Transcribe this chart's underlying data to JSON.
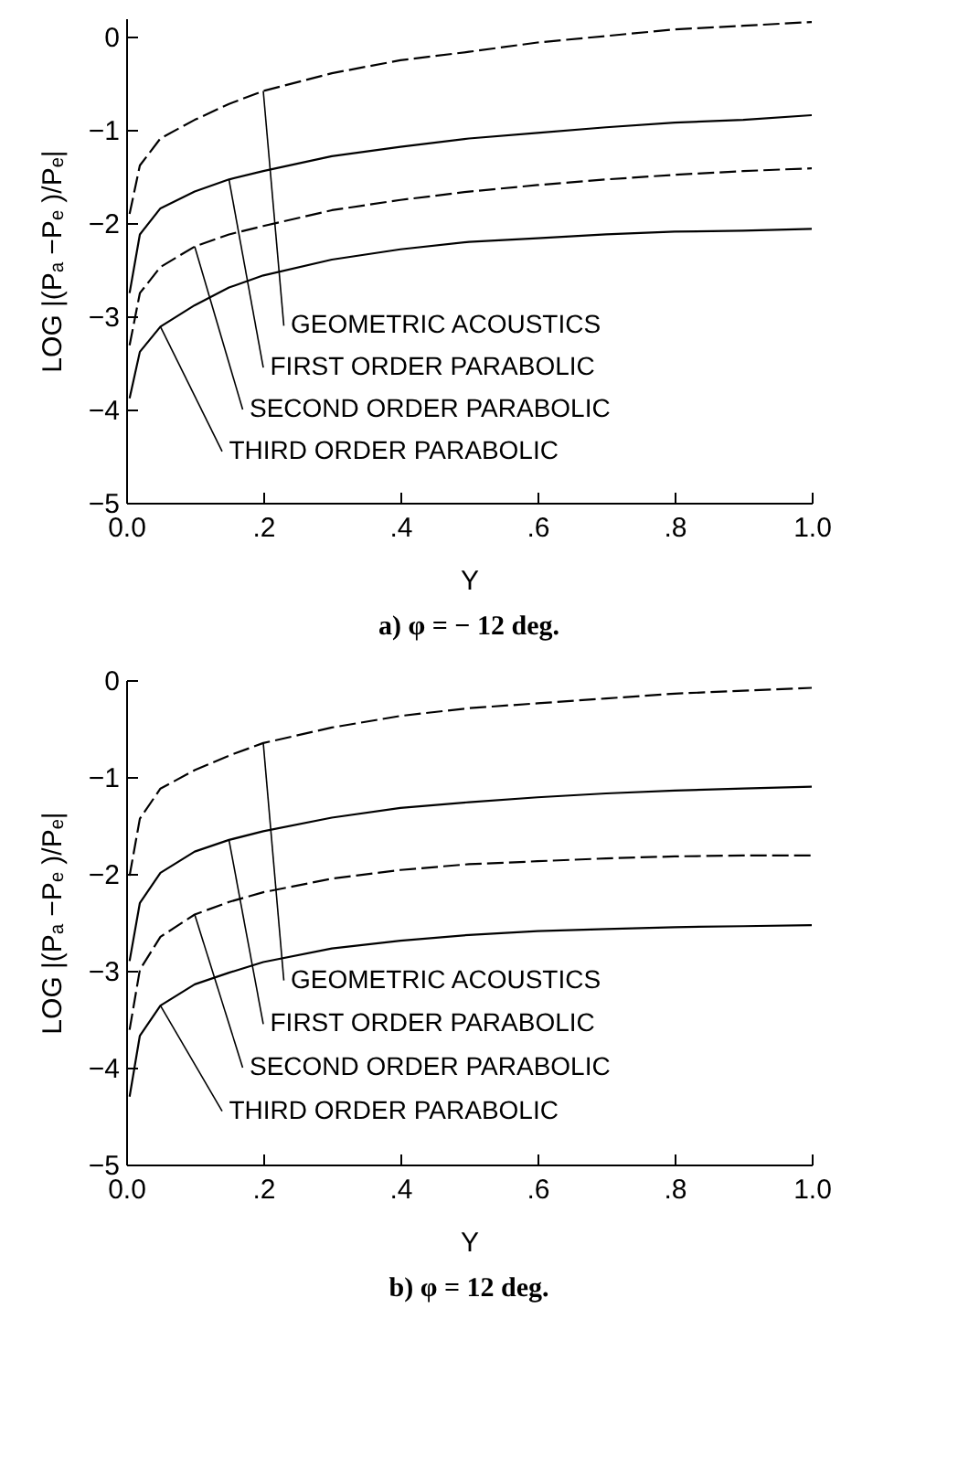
{
  "chart_data": [
    {
      "type": "line",
      "title": "a)  φ = − 12  deg.",
      "xlabel": "Y",
      "ylabel": "LOG  |(Pₐ −Pₑ )/Pₑ|",
      "xlim": [
        0,
        1
      ],
      "ylim": [
        -5,
        0.2
      ],
      "xticks": [
        {
          "value": 0,
          "label": "0.0"
        },
        {
          "value": 0.2,
          "label": ".2"
        },
        {
          "value": 0.4,
          "label": ".4"
        },
        {
          "value": 0.6,
          "label": ".6"
        },
        {
          "value": 0.8,
          "label": ".8"
        },
        {
          "value": 1,
          "label": "1.0"
        }
      ],
      "yticks": [
        -5,
        -4,
        -3,
        -2,
        -1,
        0
      ],
      "grid": false,
      "legend": false,
      "marker": "none",
      "x": [
        0.005,
        0.02,
        0.05,
        0.1,
        0.15,
        0.2,
        0.3,
        0.4,
        0.5,
        0.6,
        0.7,
        0.8,
        0.9,
        1.0
      ],
      "series": [
        {
          "name": "GEOMETRIC ACOUSTICS",
          "color": "#000000",
          "line_style": "dashed",
          "values": [
            -1.9,
            -1.38,
            -1.09,
            -0.89,
            -0.72,
            -0.58,
            -0.39,
            -0.25,
            -0.16,
            -0.06,
            0.01,
            0.08,
            0.12,
            0.16
          ]
        },
        {
          "name": "FIRST ORDER PARABOLIC",
          "color": "#000000",
          "line_style": "solid",
          "values": [
            -2.75,
            -2.12,
            -1.84,
            -1.66,
            -1.53,
            -1.44,
            -1.28,
            -1.18,
            -1.09,
            -1.03,
            -0.97,
            -0.92,
            -0.89,
            -0.84
          ]
        },
        {
          "name": "SECOND ORDER PARABOLIC",
          "color": "#000000",
          "line_style": "dashed",
          "values": [
            -3.31,
            -2.75,
            -2.47,
            -2.25,
            -2.12,
            -2.03,
            -1.86,
            -1.75,
            -1.66,
            -1.59,
            -1.53,
            -1.48,
            -1.44,
            -1.41
          ]
        },
        {
          "name": "THIRD ORDER PARABOLIC",
          "color": "#000000",
          "line_style": "solid",
          "values": [
            -3.88,
            -3.38,
            -3.11,
            -2.88,
            -2.69,
            -2.56,
            -2.39,
            -2.28,
            -2.2,
            -2.16,
            -2.12,
            -2.09,
            -2.08,
            -2.06
          ]
        }
      ]
    },
    {
      "type": "line",
      "title": "b)  φ = 12  deg.",
      "xlabel": "Y",
      "ylabel": "LOG  |(Pₐ −Pₑ )/Pₑ|",
      "xlim": [
        0,
        1
      ],
      "ylim": [
        -5,
        0
      ],
      "xticks": [
        {
          "value": 0,
          "label": "0.0"
        },
        {
          "value": 0.2,
          "label": ".2"
        },
        {
          "value": 0.4,
          "label": ".4"
        },
        {
          "value": 0.6,
          "label": ".6"
        },
        {
          "value": 0.8,
          "label": ".8"
        },
        {
          "value": 1,
          "label": "1.0"
        }
      ],
      "yticks": [
        -5,
        -4,
        -3,
        -2,
        -1,
        0
      ],
      "grid": false,
      "legend": false,
      "marker": "none",
      "x": [
        0.005,
        0.02,
        0.05,
        0.1,
        0.15,
        0.2,
        0.3,
        0.4,
        0.5,
        0.6,
        0.7,
        0.8,
        0.9,
        1.0
      ],
      "series": [
        {
          "name": "GEOMETRIC ACOUSTICS",
          "color": "#000000",
          "line_style": "dashed",
          "values": [
            -2.02,
            -1.43,
            -1.12,
            -0.93,
            -0.78,
            -0.65,
            -0.49,
            -0.37,
            -0.29,
            -0.24,
            -0.19,
            -0.14,
            -0.11,
            -0.08
          ]
        },
        {
          "name": "FIRST ORDER PARABOLIC",
          "color": "#000000",
          "line_style": "solid",
          "values": [
            -2.9,
            -2.3,
            -1.99,
            -1.77,
            -1.65,
            -1.56,
            -1.42,
            -1.32,
            -1.26,
            -1.21,
            -1.17,
            -1.14,
            -1.12,
            -1.1
          ]
        },
        {
          "name": "SECOND ORDER PARABOLIC",
          "color": "#000000",
          "line_style": "dashed",
          "values": [
            -3.61,
            -2.99,
            -2.65,
            -2.42,
            -2.29,
            -2.19,
            -2.05,
            -1.96,
            -1.9,
            -1.87,
            -1.84,
            -1.82,
            -1.81,
            -1.81
          ]
        },
        {
          "name": "THIRD ORDER PARABOLIC",
          "color": "#000000",
          "line_style": "solid",
          "values": [
            -4.3,
            -3.67,
            -3.36,
            -3.14,
            -3.02,
            -2.91,
            -2.77,
            -2.69,
            -2.63,
            -2.59,
            -2.57,
            -2.55,
            -2.54,
            -2.53
          ]
        }
      ]
    }
  ]
}
